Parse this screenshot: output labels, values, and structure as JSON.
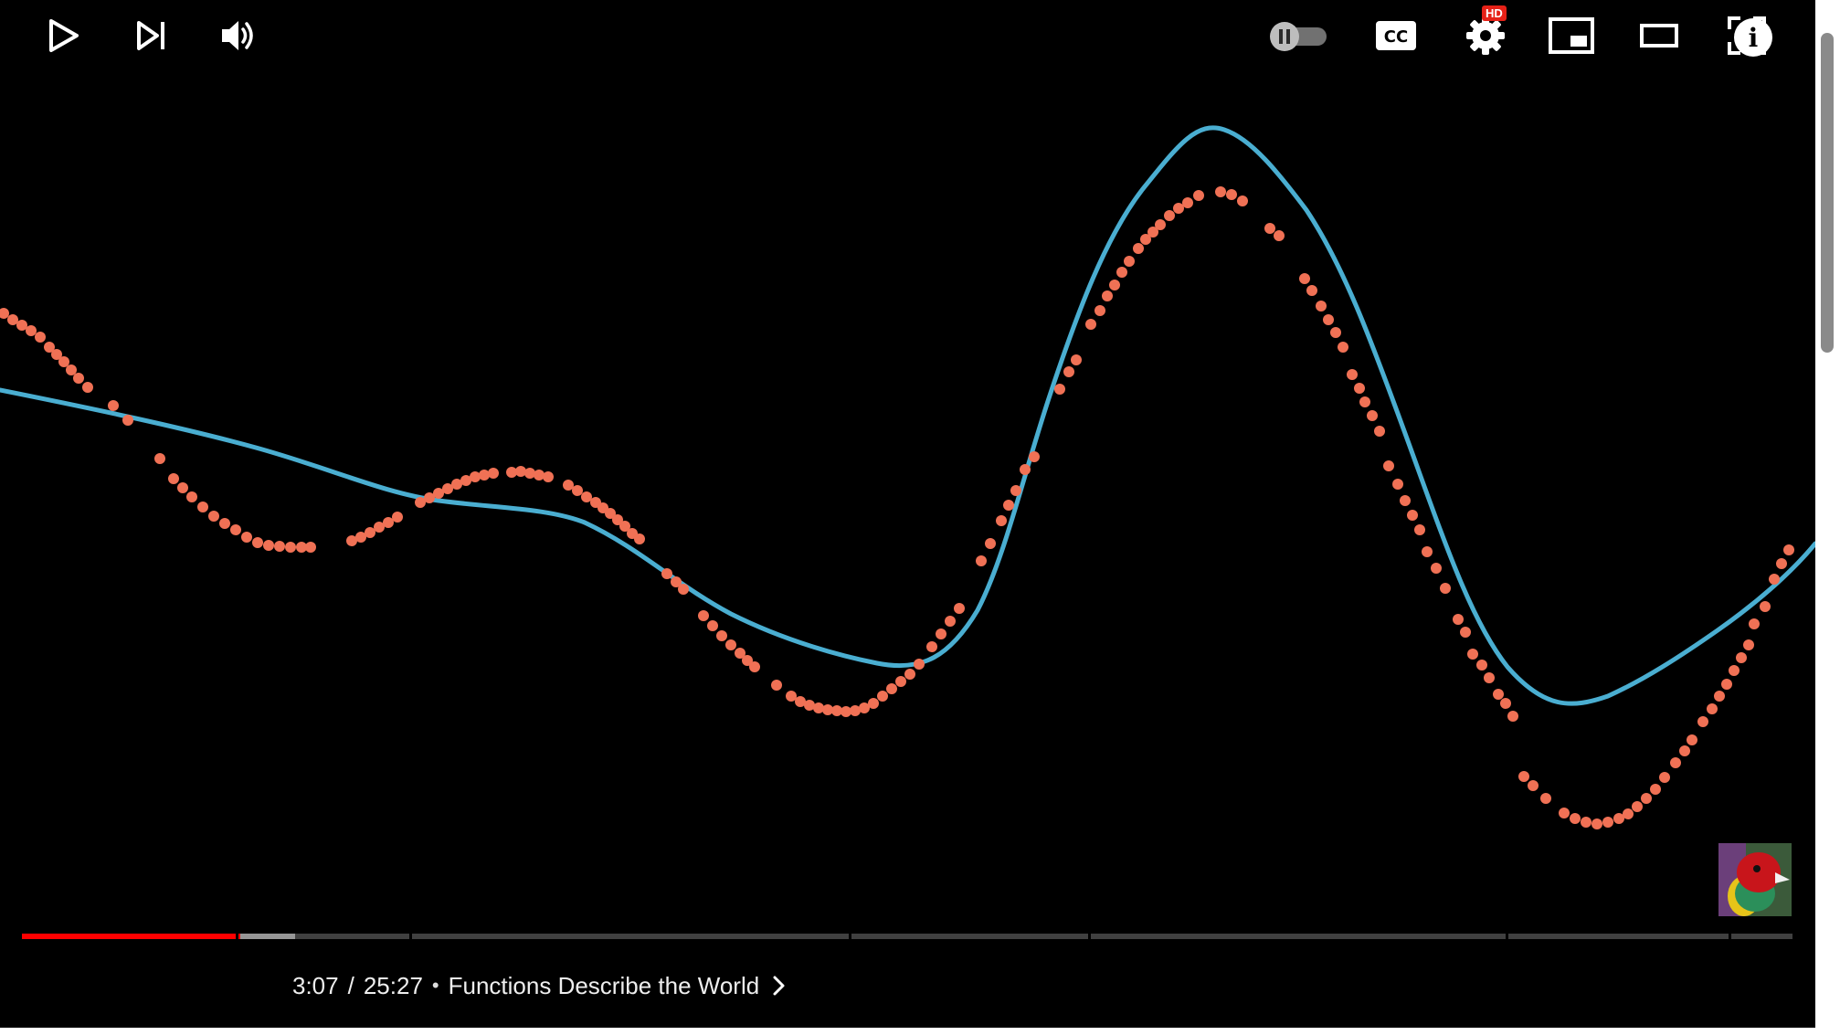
{
  "video": {
    "background": "#000000",
    "curve_color": "#4aaed1",
    "dots_color": "#f07155"
  },
  "player": {
    "current_time": "3:07",
    "time_separator": "/",
    "duration": "25:27",
    "chapter_separator": "•",
    "chapter_title": "Functions Describe the World",
    "played_color": "#ff0000",
    "played_fraction": 0.122,
    "buffered_fraction": 0.153,
    "chapter_boundaries": [
      0.121,
      0.219,
      0.467,
      0.602,
      0.838,
      0.964
    ],
    "hd_label": "HD",
    "icons": {
      "info": "info-icon",
      "play": "play-icon",
      "next": "next-icon",
      "volume": "volume-icon",
      "autoplay": "autoplay-toggle-icon",
      "captions": "cc-icon",
      "settings": "gear-icon",
      "miniplayer": "miniplayer-icon",
      "theater": "theater-icon",
      "fullscreen": "fullscreen-icon"
    }
  },
  "scrollbar": {
    "thumb_color": "#8a8a8a"
  }
}
